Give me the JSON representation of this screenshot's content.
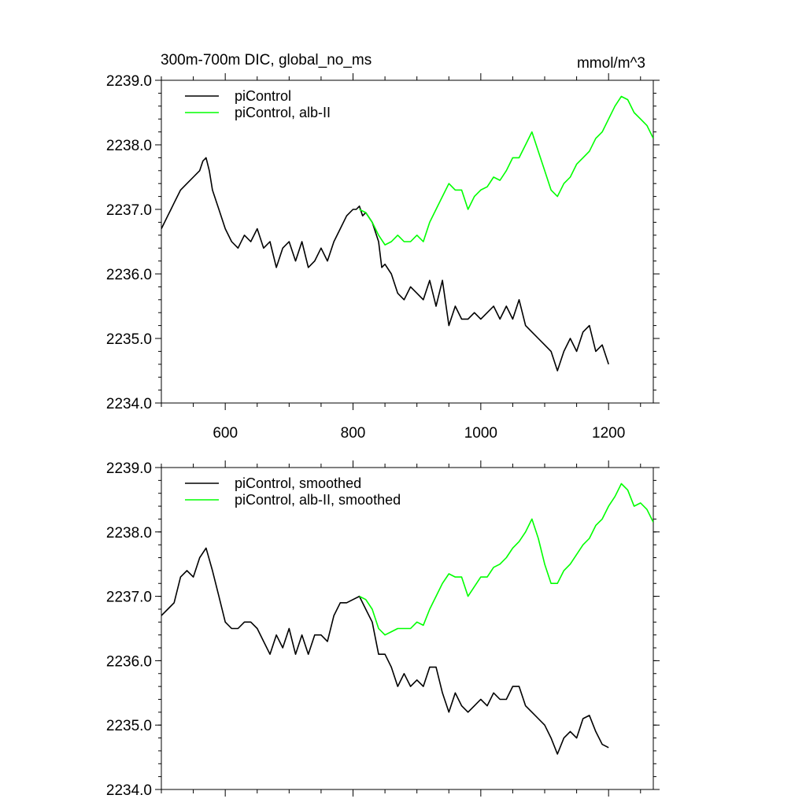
{
  "figure": {
    "title": "300m-700m DIC, global_no_ms",
    "units": "mmol/m^3"
  },
  "colors": {
    "control": "#000000",
    "alb": "#00ff00"
  },
  "chart_data": [
    {
      "type": "line",
      "title": "300m-700m DIC, global_no_ms",
      "units": "mmol/m^3",
      "xlim": [
        500,
        1270
      ],
      "ylim": [
        2234.0,
        2239.0
      ],
      "xticks": [
        600,
        800,
        1000,
        1200
      ],
      "yticks": [
        2234.0,
        2235.0,
        2236.0,
        2237.0,
        2238.0,
        2239.0
      ],
      "ytick_labels": [
        "2234.0",
        "2235.0",
        "2236.0",
        "2237.0",
        "2238.0",
        "2239.0"
      ],
      "xtick_labels": [
        "600",
        "800",
        "1000",
        "1200"
      ],
      "legend_position": "top-left",
      "series": [
        {
          "name": "piControl",
          "color": "#000000",
          "x": [
            500,
            505,
            510,
            515,
            520,
            530,
            540,
            550,
            560,
            565,
            570,
            575,
            580,
            590,
            600,
            610,
            620,
            630,
            640,
            650,
            660,
            670,
            680,
            690,
            700,
            710,
            720,
            730,
            740,
            750,
            760,
            770,
            780,
            790,
            800,
            805,
            810,
            815,
            820,
            830,
            840,
            845,
            850,
            860,
            870,
            880,
            890,
            900,
            910,
            920,
            930,
            940,
            950,
            960,
            970,
            980,
            990,
            1000,
            1010,
            1020,
            1030,
            1040,
            1050,
            1060,
            1070,
            1080,
            1090,
            1100,
            1110,
            1120,
            1130,
            1140,
            1150,
            1160,
            1170,
            1180,
            1190,
            1200
          ],
          "y": [
            2236.7,
            2236.8,
            2236.9,
            2237.0,
            2237.1,
            2237.3,
            2237.4,
            2237.5,
            2237.6,
            2237.75,
            2237.8,
            2237.6,
            2237.3,
            2237.0,
            2236.7,
            2236.5,
            2236.4,
            2236.6,
            2236.5,
            2236.7,
            2236.4,
            2236.5,
            2236.1,
            2236.4,
            2236.5,
            2236.2,
            2236.5,
            2236.1,
            2236.2,
            2236.4,
            2236.2,
            2236.5,
            2236.7,
            2236.9,
            2237.0,
            2237.0,
            2237.05,
            2236.9,
            2236.95,
            2236.8,
            2236.5,
            2236.1,
            2236.15,
            2236.0,
            2235.7,
            2235.6,
            2235.8,
            2235.7,
            2235.6,
            2235.9,
            2235.5,
            2235.9,
            2235.2,
            2235.5,
            2235.3,
            2235.3,
            2235.4,
            2235.3,
            2235.4,
            2235.5,
            2235.3,
            2235.5,
            2235.3,
            2235.6,
            2235.2,
            2235.1,
            2235.0,
            2234.9,
            2234.8,
            2234.5,
            2234.8,
            2235.0,
            2234.8,
            2235.1,
            2235.2,
            2234.8,
            2234.9,
            2234.6
          ]
        },
        {
          "name": "piControl, alb-II",
          "color": "#00ff00",
          "x": [
            810,
            820,
            830,
            840,
            850,
            860,
            870,
            880,
            890,
            900,
            910,
            920,
            930,
            940,
            950,
            960,
            970,
            980,
            990,
            1000,
            1010,
            1020,
            1030,
            1040,
            1050,
            1060,
            1070,
            1080,
            1090,
            1100,
            1110,
            1120,
            1130,
            1140,
            1150,
            1160,
            1170,
            1180,
            1190,
            1200,
            1210,
            1220,
            1230,
            1240,
            1250,
            1260,
            1270
          ],
          "y": [
            2237.0,
            2236.95,
            2236.8,
            2236.6,
            2236.45,
            2236.5,
            2236.6,
            2236.5,
            2236.5,
            2236.6,
            2236.5,
            2236.8,
            2237.0,
            2237.2,
            2237.4,
            2237.3,
            2237.3,
            2237.0,
            2237.2,
            2237.3,
            2237.35,
            2237.5,
            2237.45,
            2237.6,
            2237.8,
            2237.8,
            2238.0,
            2238.2,
            2237.9,
            2237.6,
            2237.3,
            2237.2,
            2237.4,
            2237.5,
            2237.7,
            2237.8,
            2237.9,
            2238.1,
            2238.2,
            2238.4,
            2238.6,
            2238.75,
            2238.7,
            2238.5,
            2238.4,
            2238.3,
            2238.1
          ]
        }
      ]
    },
    {
      "type": "line",
      "xlim": [
        500,
        1270
      ],
      "ylim": [
        2234.0,
        2239.0
      ],
      "xticks": [
        600,
        800,
        1000,
        1200
      ],
      "yticks": [
        2234.0,
        2235.0,
        2236.0,
        2237.0,
        2238.0,
        2239.0
      ],
      "ytick_labels": [
        "2234.0",
        "2235.0",
        "2236.0",
        "2237.0",
        "2238.0",
        "2239.0"
      ],
      "legend_position": "top-left",
      "series": [
        {
          "name": "piControl, smoothed",
          "color": "#000000",
          "x": [
            500,
            510,
            520,
            530,
            540,
            550,
            560,
            570,
            580,
            590,
            600,
            610,
            620,
            630,
            640,
            650,
            660,
            670,
            680,
            690,
            700,
            710,
            720,
            730,
            740,
            750,
            760,
            770,
            780,
            790,
            800,
            810,
            820,
            830,
            840,
            850,
            860,
            870,
            880,
            890,
            900,
            910,
            920,
            930,
            940,
            950,
            960,
            970,
            980,
            990,
            1000,
            1010,
            1020,
            1030,
            1040,
            1050,
            1060,
            1070,
            1080,
            1090,
            1100,
            1110,
            1120,
            1130,
            1140,
            1150,
            1160,
            1170,
            1180,
            1190,
            1200
          ],
          "y": [
            2236.7,
            2236.8,
            2236.9,
            2237.3,
            2237.4,
            2237.3,
            2237.6,
            2237.75,
            2237.4,
            2237.0,
            2236.6,
            2236.5,
            2236.5,
            2236.6,
            2236.6,
            2236.5,
            2236.3,
            2236.1,
            2236.4,
            2236.2,
            2236.5,
            2236.1,
            2236.4,
            2236.1,
            2236.4,
            2236.4,
            2236.3,
            2236.7,
            2236.9,
            2236.9,
            2236.95,
            2237.0,
            2236.8,
            2236.6,
            2236.1,
            2236.1,
            2235.9,
            2235.6,
            2235.8,
            2235.6,
            2235.7,
            2235.6,
            2235.9,
            2235.9,
            2235.5,
            2235.2,
            2235.5,
            2235.3,
            2235.2,
            2235.3,
            2235.4,
            2235.3,
            2235.5,
            2235.4,
            2235.4,
            2235.6,
            2235.6,
            2235.3,
            2235.2,
            2235.1,
            2235.0,
            2234.8,
            2234.55,
            2234.8,
            2234.9,
            2234.8,
            2235.1,
            2235.15,
            2234.9,
            2234.7,
            2234.65
          ]
        },
        {
          "name": "piControl, alb-II, smoothed",
          "color": "#00ff00",
          "x": [
            810,
            820,
            830,
            840,
            850,
            860,
            870,
            880,
            890,
            900,
            910,
            920,
            930,
            940,
            950,
            960,
            970,
            980,
            990,
            1000,
            1010,
            1020,
            1030,
            1040,
            1050,
            1060,
            1070,
            1080,
            1090,
            1100,
            1110,
            1120,
            1130,
            1140,
            1150,
            1160,
            1170,
            1180,
            1190,
            1200,
            1210,
            1220,
            1230,
            1240,
            1250,
            1260,
            1270
          ],
          "y": [
            2237.0,
            2236.95,
            2236.8,
            2236.5,
            2236.4,
            2236.45,
            2236.5,
            2236.5,
            2236.5,
            2236.6,
            2236.55,
            2236.8,
            2237.0,
            2237.2,
            2237.35,
            2237.3,
            2237.3,
            2237.0,
            2237.15,
            2237.3,
            2237.3,
            2237.45,
            2237.5,
            2237.6,
            2237.75,
            2237.85,
            2238.0,
            2238.2,
            2237.9,
            2237.5,
            2237.2,
            2237.2,
            2237.4,
            2237.5,
            2237.65,
            2237.8,
            2237.9,
            2238.1,
            2238.2,
            2238.4,
            2238.55,
            2238.75,
            2238.65,
            2238.4,
            2238.45,
            2238.35,
            2238.15
          ]
        }
      ]
    }
  ]
}
